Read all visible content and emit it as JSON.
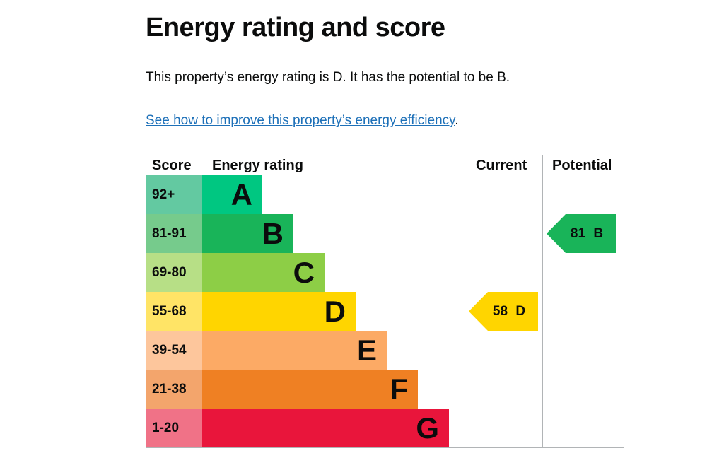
{
  "title": "Energy rating and score",
  "intro": "This property’s energy rating is D. It has the potential to be B.",
  "link_text": "See how to improve this property’s energy efficiency",
  "link_suffix": ".",
  "headers": {
    "score": "Score",
    "rating": "Energy rating",
    "current": "Current",
    "potential": "Potential"
  },
  "bands": [
    {
      "score": "92+",
      "letter": "A",
      "color": "#00c781",
      "light": "#63c9a1"
    },
    {
      "score": "81-91",
      "letter": "B",
      "color": "#19b459",
      "light": "#76cb8c"
    },
    {
      "score": "69-80",
      "letter": "C",
      "color": "#8dce46",
      "light": "#b7df86"
    },
    {
      "score": "55-68",
      "letter": "D",
      "color": "#ffd500",
      "light": "#ffe466"
    },
    {
      "score": "39-54",
      "letter": "E",
      "color": "#fcaa65",
      "light": "#fdc69c"
    },
    {
      "score": "21-38",
      "letter": "F",
      "color": "#ef8023",
      "light": "#f3a56c"
    },
    {
      "score": "1-20",
      "letter": "G",
      "color": "#e9153b",
      "light": "#f07287"
    }
  ],
  "current": {
    "label": "58 D",
    "band_index": 3,
    "color": "#ffd500"
  },
  "potential": {
    "label": "81 B",
    "band_index": 1,
    "color": "#19b459"
  }
}
